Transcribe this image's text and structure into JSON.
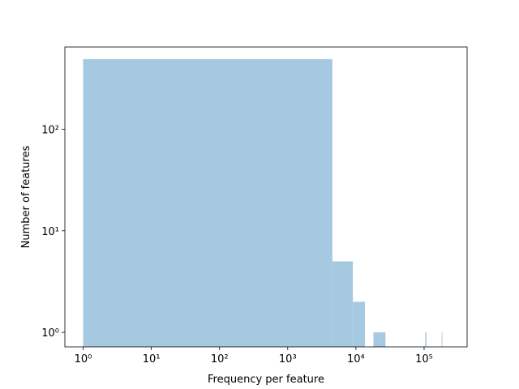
{
  "chart_data": {
    "type": "histogram",
    "xlabel": "Frequency per feature",
    "ylabel": "Number of features",
    "bins": [
      1,
      4521,
      9041,
      13561,
      18081,
      22601,
      27121,
      31641,
      36161,
      40681,
      45201,
      49721,
      54241,
      58761,
      63281,
      67801,
      72321,
      76841,
      81361,
      85881,
      90401,
      94921,
      99441,
      103961,
      108481,
      113001,
      117521,
      122041,
      126561,
      131081,
      135601,
      140121,
      144641,
      149161,
      153681,
      158201,
      162721,
      167241,
      171761,
      176281,
      180801,
      185321,
      189841,
      194361,
      198881,
      203401,
      207921,
      212441,
      216961,
      221481,
      226001
    ],
    "values": [
      489,
      5,
      2,
      0,
      1,
      1,
      0,
      0,
      0,
      0,
      0,
      0,
      0,
      0,
      0,
      0,
      0,
      0,
      0,
      0,
      0,
      0,
      0,
      1,
      0,
      0,
      0,
      0,
      0,
      0,
      0,
      0,
      0,
      0,
      0,
      0,
      0,
      0,
      0,
      0,
      1,
      0,
      0,
      0,
      0,
      0,
      0,
      0,
      0,
      0
    ],
    "color": "#a5c9e1",
    "xscale": "log",
    "yscale": "log",
    "xlim": [
      0.54,
      427000
    ],
    "ylim": [
      0.72,
      645
    ],
    "xticks": [
      {
        "value": 1,
        "label": "10⁰"
      },
      {
        "value": 10,
        "label": "10¹"
      },
      {
        "value": 100,
        "label": "10²"
      },
      {
        "value": 1000,
        "label": "10³"
      },
      {
        "value": 10000,
        "label": "10⁴"
      },
      {
        "value": 100000,
        "label": "10⁵"
      }
    ],
    "yticks": [
      {
        "value": 1,
        "label": "10⁰"
      },
      {
        "value": 10,
        "label": "10¹"
      },
      {
        "value": 100,
        "label": "10²"
      }
    ]
  }
}
